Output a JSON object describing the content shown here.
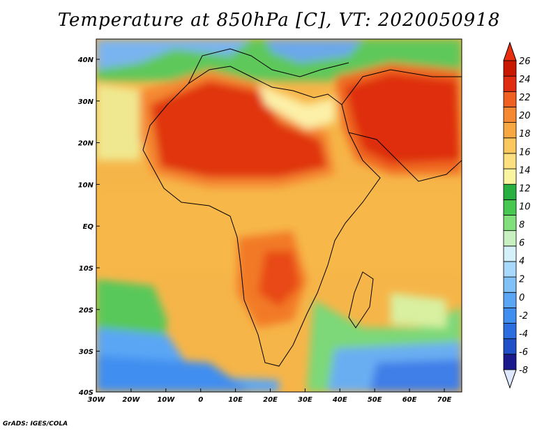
{
  "title": "Temperature at 850hPa [C], VT: 2020050918",
  "credit": "GrADS: IGES/COLA",
  "map": {
    "lon_range": [
      -30,
      75
    ],
    "lat_range": [
      -40,
      45
    ],
    "lat_ticks": [
      "40N",
      "30N",
      "20N",
      "10N",
      "EQ",
      "10S",
      "20S",
      "30S",
      "40S"
    ],
    "lon_ticks": [
      "30W",
      "20W",
      "10W",
      "0",
      "10E",
      "20E",
      "30E",
      "40E",
      "50E",
      "60E",
      "70E"
    ]
  },
  "colorbar": {
    "labels": [
      "26",
      "24",
      "22",
      "20",
      "18",
      "16",
      "14",
      "12",
      "10",
      "8",
      "6",
      "4",
      "2",
      "0",
      "-2",
      "-4",
      "-6",
      "-8"
    ],
    "colors": [
      "#1a1a8c",
      "#2050c8",
      "#2c6ee0",
      "#3f8ef0",
      "#5aa6f5",
      "#82c0f8",
      "#a8d8fb",
      "#d4f0f8",
      "#c8f0c0",
      "#82e07c",
      "#48c850",
      "#28b040",
      "#f8f4a0",
      "#fce080",
      "#fbc860",
      "#f8a840",
      "#f58830",
      "#f06020",
      "#e02c10",
      "#c81800"
    ],
    "over_color": "#e83010",
    "under_color": "#e0e8ff"
  }
}
